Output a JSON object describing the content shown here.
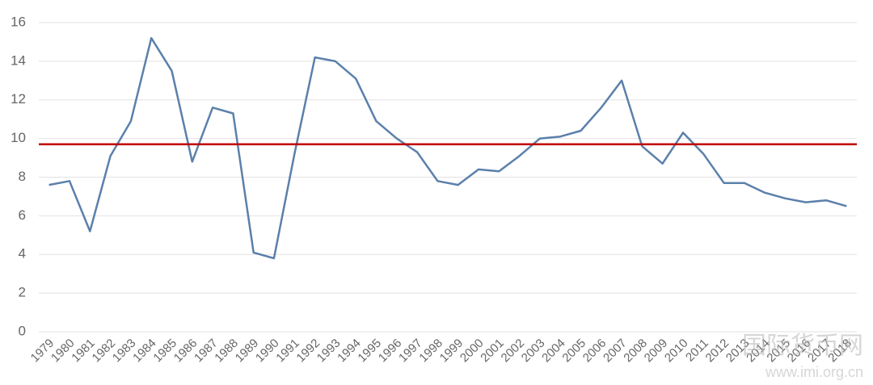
{
  "chart_data": {
    "type": "line",
    "categories": [
      "1979",
      "1980",
      "1981",
      "1982",
      "1983",
      "1984",
      "1985",
      "1986",
      "1987",
      "1988",
      "1989",
      "1990",
      "1991",
      "1992",
      "1993",
      "1994",
      "1995",
      "1996",
      "1997",
      "1998",
      "1999",
      "2000",
      "2001",
      "2002",
      "2003",
      "2004",
      "2005",
      "2006",
      "2007",
      "2008",
      "2009",
      "2010",
      "2011",
      "2012",
      "2013",
      "2014",
      "2015",
      "2016",
      "2017",
      "2018"
    ],
    "series": [
      {
        "color": "#5b80ab",
        "values": [
          7.6,
          7.8,
          5.2,
          9.1,
          10.9,
          15.2,
          13.5,
          8.8,
          11.6,
          11.3,
          4.1,
          3.8,
          9.2,
          14.2,
          14.0,
          13.1,
          10.9,
          10.0,
          9.3,
          7.8,
          7.6,
          8.4,
          8.3,
          9.1,
          10.0,
          10.1,
          10.4,
          11.6,
          13.0,
          9.6,
          8.7,
          10.3,
          9.2,
          7.7,
          7.7,
          7.2,
          6.9,
          6.7,
          6.8,
          6.5
        ]
      }
    ],
    "reference_line": {
      "value": 9.7,
      "color": "#c00000"
    },
    "ylim": [
      0,
      16
    ],
    "yticks": [
      0,
      2,
      4,
      6,
      8,
      10,
      12,
      14,
      16
    ],
    "grid": true,
    "watermark": [
      "国际货币网",
      "www.imi.org.cn"
    ]
  }
}
